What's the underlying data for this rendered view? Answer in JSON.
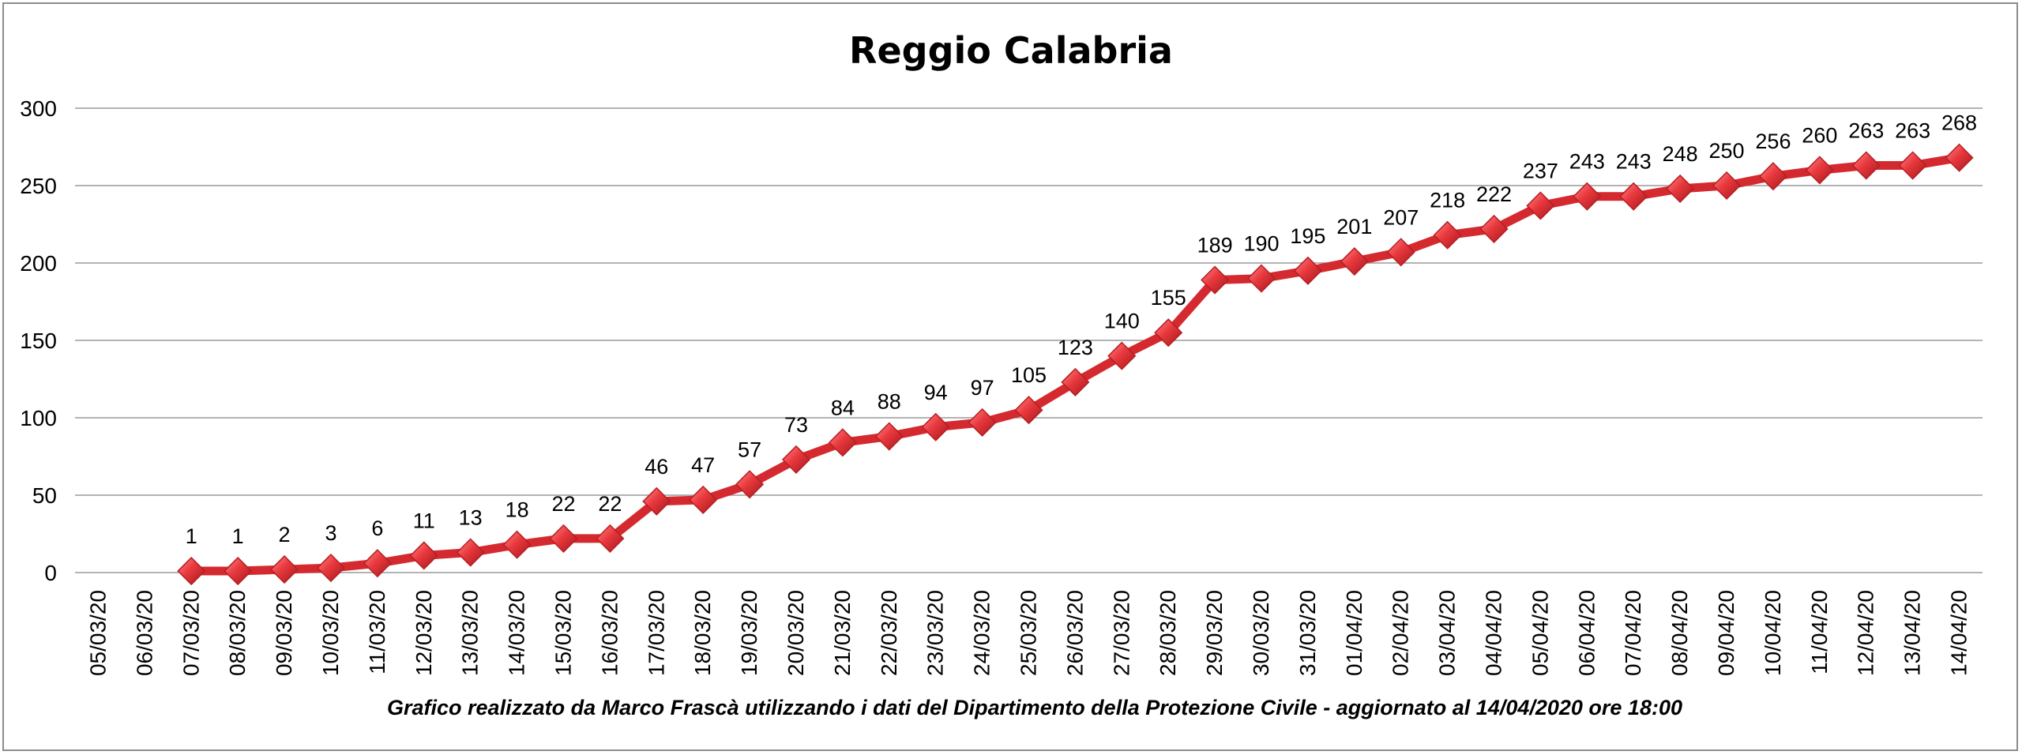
{
  "chart_data": {
    "type": "line",
    "title": "Reggio Calabria",
    "caption": "Grafico  realizzato da Marco Frascà  utilizzando i dati del Dipartimento  della Protezione Civile - aggiornato al 14/04/2020 ore 18:00",
    "categories": [
      "05/03/20",
      "06/03/20",
      "07/03/20",
      "08/03/20",
      "09/03/20",
      "10/03/20",
      "11/03/20",
      "12/03/20",
      "13/03/20",
      "14/03/20",
      "15/03/20",
      "16/03/20",
      "17/03/20",
      "18/03/20",
      "19/03/20",
      "20/03/20",
      "21/03/20",
      "22/03/20",
      "23/03/20",
      "24/03/20",
      "25/03/20",
      "26/03/20",
      "27/03/20",
      "28/03/20",
      "29/03/20",
      "30/03/20",
      "31/03/20",
      "01/04/20",
      "02/04/20",
      "03/04/20",
      "04/04/20",
      "05/04/20",
      "06/04/20",
      "07/04/20",
      "08/04/20",
      "09/04/20",
      "10/04/20",
      "11/04/20",
      "12/04/20",
      "13/04/20",
      "14/04/20"
    ],
    "values": [
      null,
      null,
      1,
      1,
      2,
      3,
      6,
      11,
      13,
      18,
      22,
      22,
      46,
      47,
      57,
      73,
      84,
      88,
      94,
      97,
      105,
      123,
      140,
      155,
      189,
      190,
      195,
      201,
      207,
      218,
      222,
      237,
      243,
      243,
      248,
      250,
      256,
      260,
      263,
      263,
      268
    ],
    "ylim": [
      0,
      300
    ],
    "yticks": [
      0,
      50,
      100,
      150,
      200,
      250,
      300
    ],
    "grid": true,
    "colors": {
      "line": "#d42a2f",
      "marker": "#e8383d",
      "grid": "#9a9a9a"
    }
  }
}
